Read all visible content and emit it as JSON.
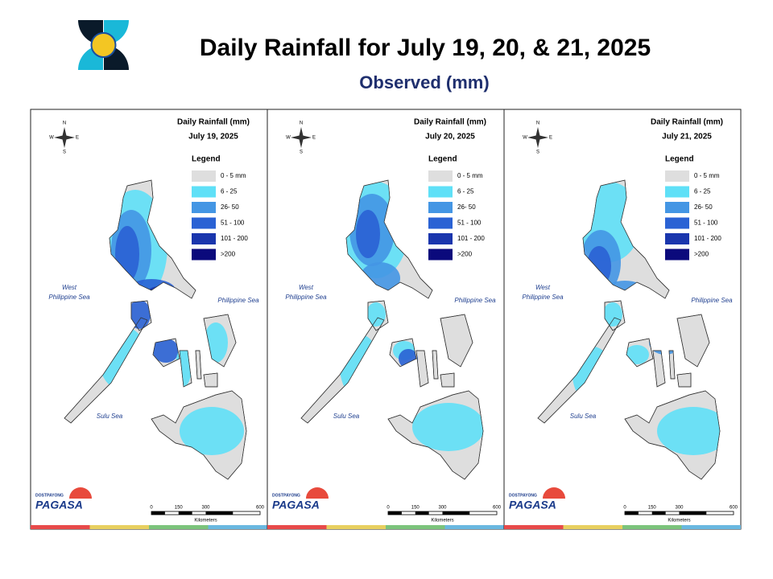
{
  "header": {
    "title": "Daily Rainfall for July 19, 20, & 21, 2025",
    "subtitle": "Observed (mm)"
  },
  "legend": {
    "title": "Legend",
    "items": [
      {
        "label": "0 - 5 mm",
        "color": "#dedede"
      },
      {
        "label": "6 - 25",
        "color": "#5fe0f7"
      },
      {
        "label": "26- 50",
        "color": "#4496e4"
      },
      {
        "label": "51 - 100",
        "color": "#2a62d4"
      },
      {
        "label": "101 - 200",
        "color": "#1a36ad"
      },
      {
        "label": ">200",
        "color": "#0b0a7c"
      }
    ]
  },
  "panels": [
    {
      "title": "Daily Rainfall (mm)",
      "date": "July 19, 2025"
    },
    {
      "title": "Daily Rainfall (mm)",
      "date": "July 20, 2025"
    },
    {
      "title": "Daily Rainfall (mm)",
      "date": "July 21, 2025"
    }
  ],
  "seas": {
    "west": [
      "West",
      "Philippine Sea"
    ],
    "east": "Philippine Sea",
    "sulu": "Sulu Sea"
  },
  "compass": {
    "n": "N",
    "s": "S",
    "e": "E",
    "w": "W"
  },
  "scale": {
    "ticks": [
      0,
      150,
      300,
      600
    ],
    "unit": "Kilometers"
  },
  "logo": {
    "small": "DOST",
    "top": "PAYONG",
    "name": "PAGASA"
  }
}
